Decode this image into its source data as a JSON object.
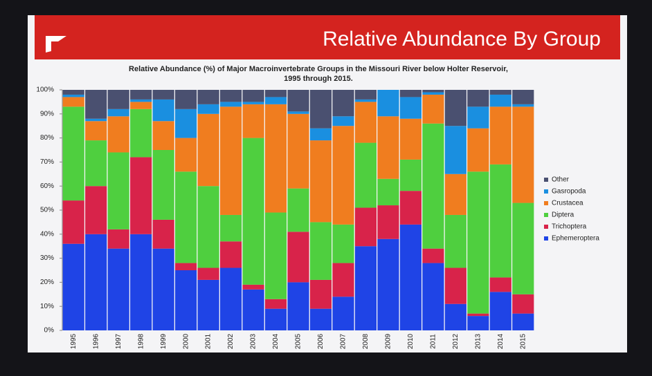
{
  "slide_title": "Relative Abundance By Group",
  "chart_data": {
    "type": "bar",
    "stacked": true,
    "title": [
      "Relative Abundance  (%) of Major Macroinvertebrate Groups in the Missouri River below Holter Reservoir,",
      "1995 through 2015."
    ],
    "categories": [
      "1995",
      "1996",
      "1997",
      "1998",
      "1999",
      "2000",
      "2001",
      "2002",
      "2003",
      "2004",
      "2005",
      "2006",
      "2007",
      "2008",
      "2009",
      "2010",
      "2011",
      "2012",
      "2013",
      "2014",
      "2015"
    ],
    "series": [
      {
        "name": "Ephemeroptera",
        "color": "#1f44e6",
        "values": [
          36,
          40,
          34,
          40,
          34,
          25,
          21,
          26,
          17,
          9,
          20,
          9,
          14,
          35,
          38,
          44,
          28,
          11,
          6,
          16,
          7
        ]
      },
      {
        "name": "Trichoptera",
        "color": "#d8234a",
        "values": [
          18,
          20,
          8,
          32,
          12,
          3,
          5,
          11,
          2,
          4,
          21,
          12,
          14,
          16,
          14,
          14,
          6,
          15,
          1,
          6,
          8
        ]
      },
      {
        "name": "Diptera",
        "color": "#4fcf3f",
        "values": [
          39,
          19,
          32,
          20,
          29,
          38,
          34,
          11,
          61,
          36,
          18,
          24,
          16,
          27,
          11,
          13,
          52,
          22,
          59,
          47,
          38
        ]
      },
      {
        "name": "Crustacea",
        "color": "#f07d1f",
        "values": [
          4,
          8,
          15,
          3,
          12,
          14,
          30,
          45,
          14,
          45,
          31,
          34,
          41,
          17,
          26,
          17,
          12,
          17,
          18,
          24,
          40
        ]
      },
      {
        "name": "Gasropoda",
        "color": "#1a8fe0",
        "values": [
          1,
          1,
          3,
          1,
          9,
          12,
          4,
          2,
          1,
          3,
          1,
          5,
          4,
          1,
          11,
          9,
          1,
          20,
          9,
          5,
          1
        ]
      },
      {
        "name": "Other",
        "color": "#4a5070",
        "values": [
          2,
          12,
          8,
          4,
          4,
          8,
          6,
          5,
          5,
          3,
          9,
          16,
          11,
          4,
          0,
          3,
          1,
          15,
          7,
          2,
          6
        ]
      }
    ],
    "ylim": [
      0,
      100
    ],
    "yticks": [
      {
        "value": 0,
        "label": "0%"
      },
      {
        "value": 10,
        "label": "10%"
      },
      {
        "value": 20,
        "label": "20%"
      },
      {
        "value": 30,
        "label": "30%"
      },
      {
        "value": 40,
        "label": "40%"
      },
      {
        "value": 50,
        "label": "50%"
      },
      {
        "value": 60,
        "label": "60%"
      },
      {
        "value": 70,
        "label": "70%"
      },
      {
        "value": 80,
        "label": "80%"
      },
      {
        "value": 90,
        "label": "90%"
      },
      {
        "value": 100,
        "label": "100%"
      }
    ],
    "legend": "right"
  }
}
